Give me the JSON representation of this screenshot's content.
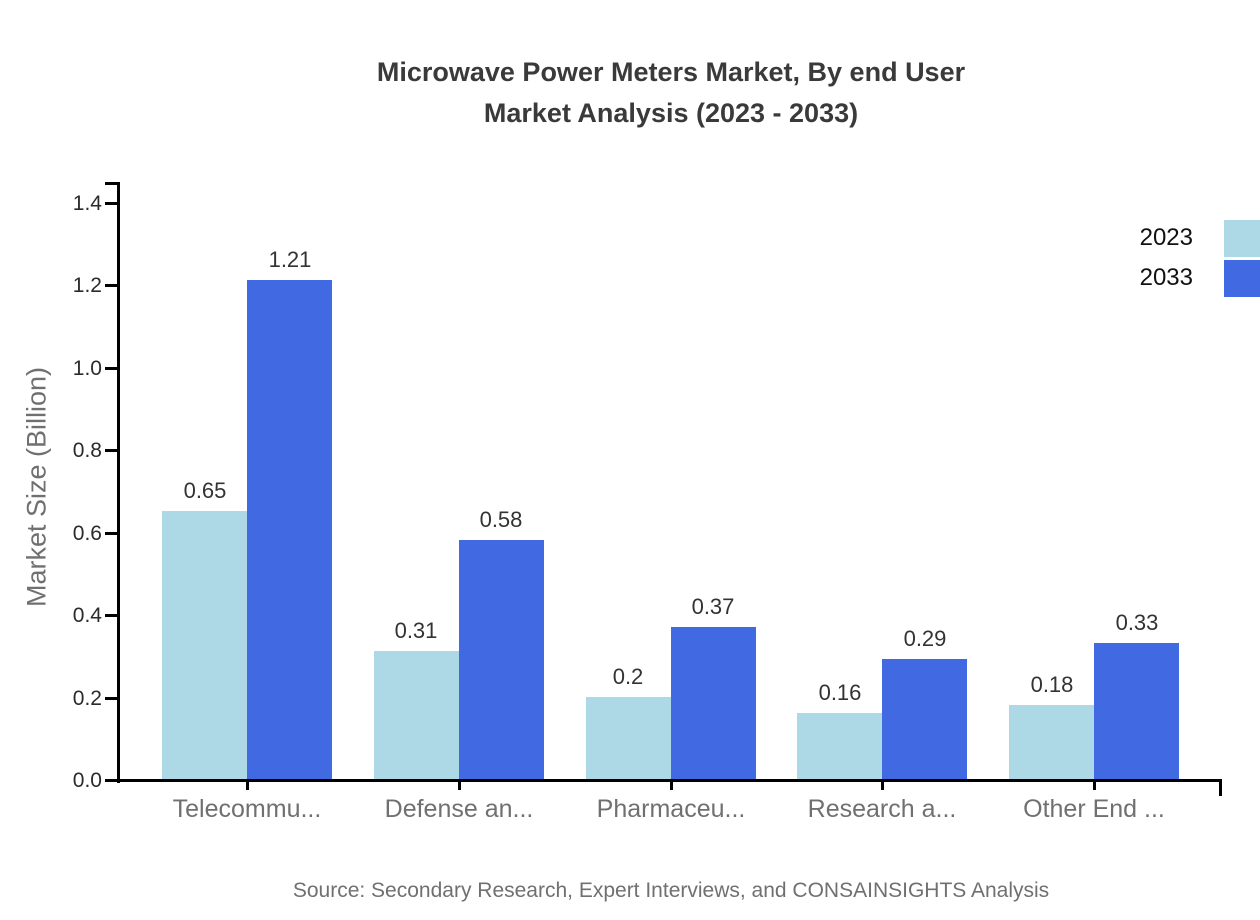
{
  "page": {
    "background": "#ffffff"
  },
  "chart_data": {
    "type": "bar",
    "title": "Microwave Power Meters Market, By end User",
    "subtitle": "Market Analysis (2023 - 2033)",
    "categories": [
      "Telecommu...",
      "Defense an...",
      "Pharmaceu...",
      "Research a...",
      "Other End ..."
    ],
    "series": [
      {
        "name": "2023",
        "color": "#ADD8E6",
        "values": [
          0.65,
          0.31,
          0.2,
          0.16,
          0.18
        ]
      },
      {
        "name": "2033",
        "color": "#4169E1",
        "values": [
          1.21,
          0.58,
          0.37,
          0.29,
          0.33
        ]
      }
    ],
    "xlabel": "",
    "ylabel": "Market Size (Billion)",
    "ylim": [
      0,
      1.4
    ],
    "yticks": [
      "0.0",
      "0.2",
      "0.4",
      "0.6",
      "0.8",
      "1.0",
      "1.2",
      "1.4"
    ],
    "grid": false,
    "legend_position": "top-right",
    "value_labels_shown": true,
    "source": "Source: Secondary Research, Expert Interviews, and CONSAINSIGHTS Analysis"
  },
  "colors": {
    "title_text": "#3A3A3A",
    "axis_line": "#000000",
    "value_label_text": "#333333",
    "category_label_text": "#707070",
    "ytick_label_text": "#2B2B2B",
    "ylabel_text": "#707070",
    "legend_text": "#111111",
    "source_text": "#707070",
    "series_2023": "#ADD8E6",
    "series_2033": "#4169E1"
  }
}
